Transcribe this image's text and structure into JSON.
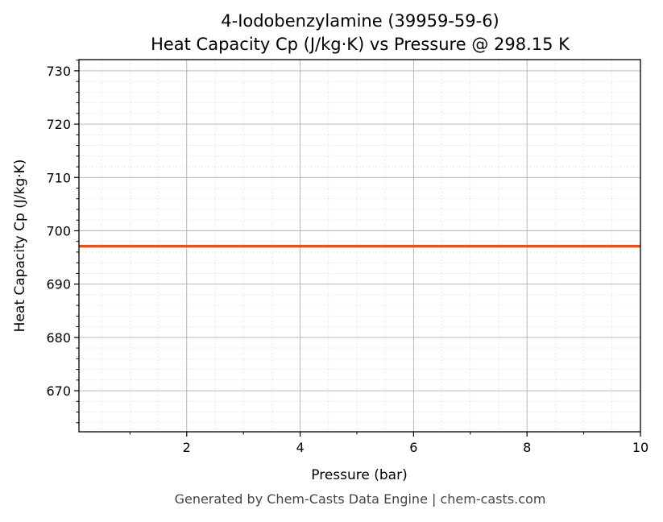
{
  "chart_data": {
    "type": "line",
    "title_line1": "4-Iodobenzylamine (39959-59-6)",
    "title_line2": "Heat Capacity Cp (J/kg·K) vs Pressure @ 298.15 K",
    "xlabel": "Pressure (bar)",
    "ylabel": "Heat Capacity Cp (J/kg·K)",
    "xlim": [
      0.1,
      10
    ],
    "ylim": [
      662.3,
      732.1
    ],
    "xticks": [
      2,
      4,
      6,
      8,
      10
    ],
    "yticks": [
      670,
      680,
      690,
      700,
      710,
      720,
      730
    ],
    "grid": true,
    "series": [
      {
        "x": [
          0.1,
          10
        ],
        "y": [
          697.1,
          697.1
        ],
        "color": "#e1541f"
      }
    ]
  },
  "footer": "Generated by Chem-Casts Data Engine | chem-casts.com"
}
